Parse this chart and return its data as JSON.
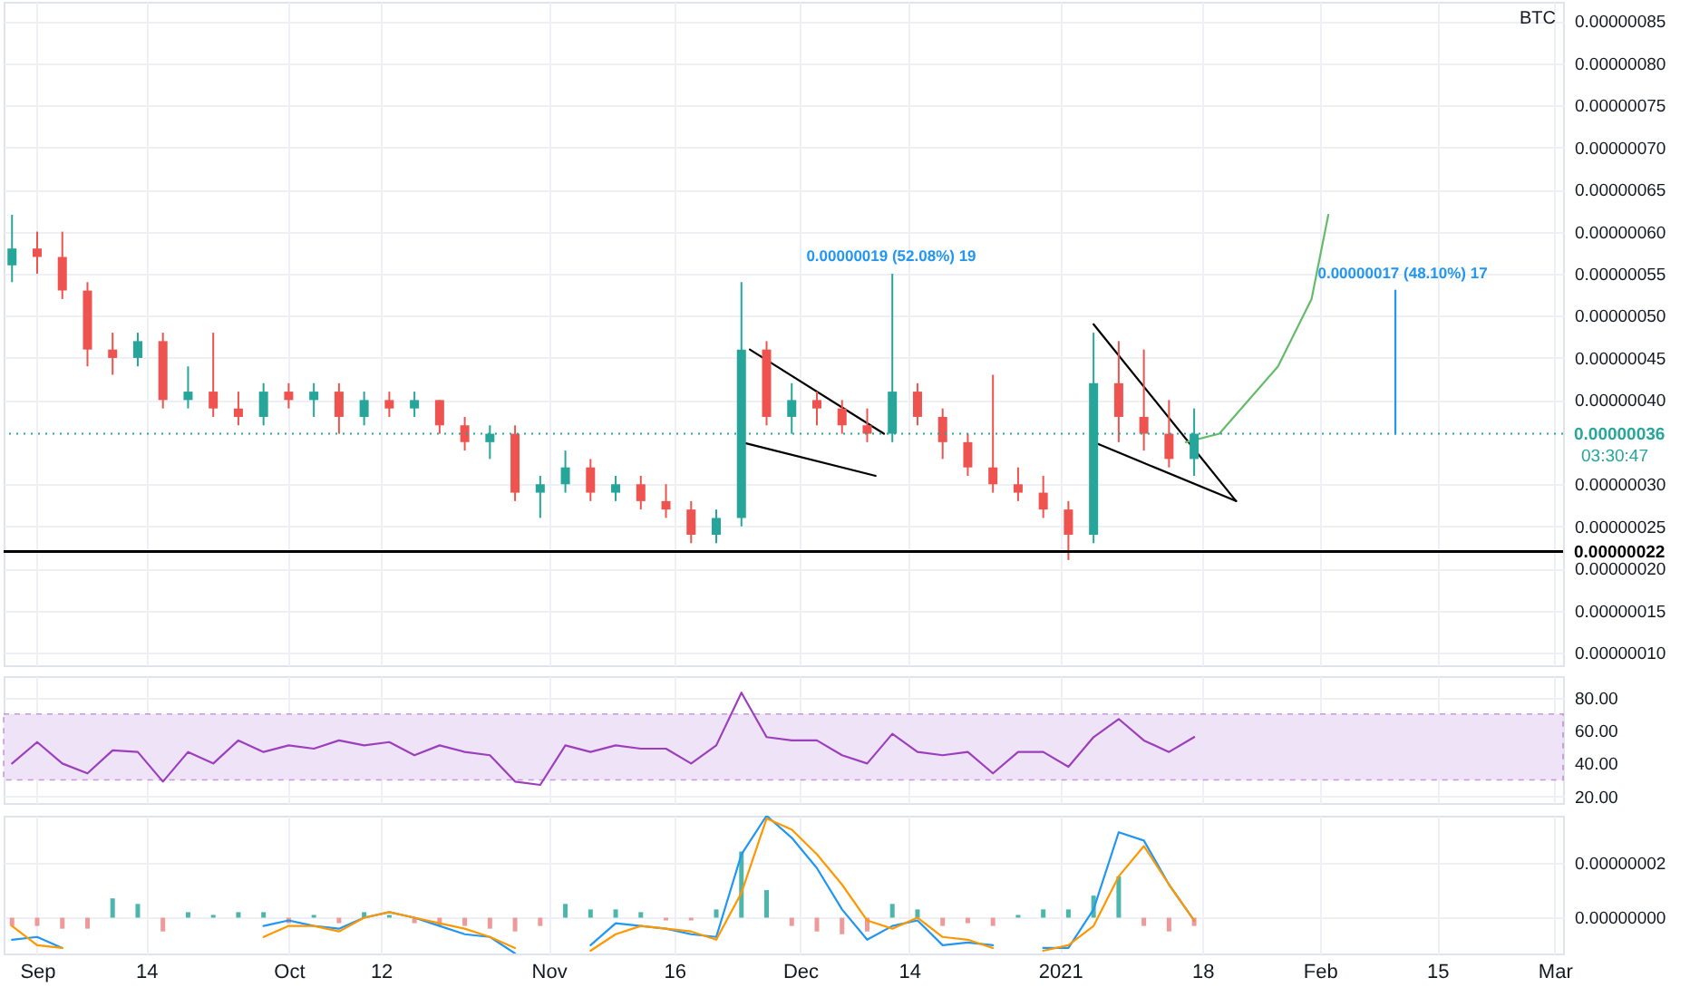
{
  "chart_data": [
    {
      "type": "candlestick",
      "x": [
        "2020-08-29",
        "2020-09-01",
        "2020-09-04",
        "2020-09-07",
        "2020-09-10",
        "2020-09-13",
        "2020-09-16",
        "2020-09-19",
        "2020-09-22",
        "2020-09-25",
        "2020-09-28",
        "2020-10-01",
        "2020-10-04",
        "2020-10-07",
        "2020-10-10",
        "2020-10-13",
        "2020-10-16",
        "2020-10-19",
        "2020-10-22",
        "2020-10-25",
        "2020-10-28",
        "2020-10-31",
        "2020-11-03",
        "2020-11-06",
        "2020-11-09",
        "2020-11-12",
        "2020-11-15",
        "2020-11-18",
        "2020-11-21",
        "2020-11-24",
        "2020-11-27",
        "2020-11-30",
        "2020-12-03",
        "2020-12-06",
        "2020-12-09",
        "2020-12-12",
        "2020-12-15",
        "2020-12-18",
        "2020-12-21",
        "2020-12-24",
        "2020-12-27",
        "2020-12-30",
        "2021-01-02",
        "2021-01-05",
        "2021-01-08",
        "2021-01-11",
        "2021-01-14",
        "2021-01-17"
      ],
      "ohlc": [
        [
          5.6e-07,
          6.2e-07,
          5.4e-07,
          5.8e-07
        ],
        [
          5.8e-07,
          6e-07,
          5.5e-07,
          5.7e-07
        ],
        [
          5.7e-07,
          6e-07,
          5.2e-07,
          5.3e-07
        ],
        [
          5.3e-07,
          5.4e-07,
          4.4e-07,
          4.6e-07
        ],
        [
          4.6e-07,
          4.8e-07,
          4.3e-07,
          4.5e-07
        ],
        [
          4.5e-07,
          4.8e-07,
          4.4e-07,
          4.7e-07
        ],
        [
          4.7e-07,
          4.8e-07,
          3.9e-07,
          4e-07
        ],
        [
          4e-07,
          4.4e-07,
          3.9e-07,
          4.1e-07
        ],
        [
          4.1e-07,
          4.8e-07,
          3.8e-07,
          3.9e-07
        ],
        [
          3.9e-07,
          4.1e-07,
          3.7e-07,
          3.8e-07
        ],
        [
          3.8e-07,
          4.2e-07,
          3.7e-07,
          4.1e-07
        ],
        [
          4.1e-07,
          4.2e-07,
          3.9e-07,
          4e-07
        ],
        [
          4e-07,
          4.2e-07,
          3.8e-07,
          4.1e-07
        ],
        [
          4.1e-07,
          4.2e-07,
          3.6e-07,
          3.8e-07
        ],
        [
          3.8e-07,
          4.1e-07,
          3.7e-07,
          4e-07
        ],
        [
          4e-07,
          4.1e-07,
          3.8e-07,
          3.9e-07
        ],
        [
          3.9e-07,
          4.1e-07,
          3.8e-07,
          4e-07
        ],
        [
          4e-07,
          4e-07,
          3.6e-07,
          3.7e-07
        ],
        [
          3.7e-07,
          3.8e-07,
          3.4e-07,
          3.5e-07
        ],
        [
          3.5e-07,
          3.7e-07,
          3.3e-07,
          3.6e-07
        ],
        [
          3.6e-07,
          3.7e-07,
          2.8e-07,
          2.9e-07
        ],
        [
          2.9e-07,
          3.1e-07,
          2.6e-07,
          3e-07
        ],
        [
          3e-07,
          3.4e-07,
          2.9e-07,
          3.2e-07
        ],
        [
          3.2e-07,
          3.3e-07,
          2.8e-07,
          2.9e-07
        ],
        [
          2.9e-07,
          3.1e-07,
          2.8e-07,
          3e-07
        ],
        [
          3e-07,
          3.1e-07,
          2.7e-07,
          2.8e-07
        ],
        [
          2.8e-07,
          3e-07,
          2.6e-07,
          2.7e-07
        ],
        [
          2.7e-07,
          2.8e-07,
          2.3e-07,
          2.4e-07
        ],
        [
          2.4e-07,
          2.7e-07,
          2.3e-07,
          2.6e-07
        ],
        [
          2.6e-07,
          5.4e-07,
          2.5e-07,
          4.6e-07
        ],
        [
          4.6e-07,
          4.7e-07,
          3.7e-07,
          3.8e-07
        ],
        [
          3.8e-07,
          4.2e-07,
          3.6e-07,
          4e-07
        ],
        [
          4e-07,
          4.1e-07,
          3.7e-07,
          3.9e-07
        ],
        [
          3.9e-07,
          4e-07,
          3.6e-07,
          3.7e-07
        ],
        [
          3.7e-07,
          3.9e-07,
          3.5e-07,
          3.6e-07
        ],
        [
          3.6e-07,
          5.5e-07,
          3.5e-07,
          4.1e-07
        ],
        [
          4.1e-07,
          4.2e-07,
          3.7e-07,
          3.8e-07
        ],
        [
          3.8e-07,
          3.9e-07,
          3.3e-07,
          3.5e-07
        ],
        [
          3.5e-07,
          3.6e-07,
          3.1e-07,
          3.2e-07
        ],
        [
          3.2e-07,
          4.3e-07,
          2.9e-07,
          3e-07
        ],
        [
          3e-07,
          3.2e-07,
          2.8e-07,
          2.9e-07
        ],
        [
          2.9e-07,
          3.1e-07,
          2.6e-07,
          2.7e-07
        ],
        [
          2.7e-07,
          2.8e-07,
          2.1e-07,
          2.4e-07
        ],
        [
          2.4e-07,
          4.8e-07,
          2.3e-07,
          4.2e-07
        ],
        [
          4.2e-07,
          4.7e-07,
          3.5e-07,
          3.8e-07
        ],
        [
          3.8e-07,
          4.6e-07,
          3.4e-07,
          3.6e-07
        ],
        [
          3.6e-07,
          4e-07,
          3.2e-07,
          3.3e-07
        ],
        [
          3.3e-07,
          3.9e-07,
          3.1e-07,
          3.6e-07
        ]
      ],
      "colors": [
        "#26a69a",
        "#ef5350",
        "#ef5350",
        "#ef5350",
        "#ef5350",
        "#26a69a",
        "#ef5350",
        "#26a69a",
        "#ef5350",
        "#ef5350",
        "#26a69a",
        "#ef5350",
        "#26a69a",
        "#ef5350",
        "#26a69a",
        "#ef5350",
        "#26a69a",
        "#ef5350",
        "#ef5350",
        "#26a69a",
        "#ef5350",
        "#26a69a",
        "#26a69a",
        "#ef5350",
        "#26a69a",
        "#ef5350",
        "#ef5350",
        "#ef5350",
        "#26a69a",
        "#26a69a",
        "#ef5350",
        "#26a69a",
        "#ef5350",
        "#ef5350",
        "#ef5350",
        "#26a69a",
        "#ef5350",
        "#ef5350",
        "#ef5350",
        "#ef5350",
        "#ef5350",
        "#ef5350",
        "#ef5350",
        "#26a69a",
        "#ef5350",
        "#ef5350",
        "#ef5350",
        "#26a69a"
      ],
      "series": [
        {
          "type": "line",
          "x": [
            "2020-11-25",
            "2020-12-11"
          ],
          "values": [
            4.6e-07,
            3.6e-07
          ],
          "color": "#000000"
        },
        {
          "type": "line",
          "x": [
            "2020-11-24",
            "2020-12-10"
          ],
          "values": [
            3.5e-07,
            3.1e-07
          ],
          "color": "#000000"
        },
        {
          "type": "line",
          "x": [
            "2021-01-05",
            "2021-01-22"
          ],
          "values": [
            4.9e-07,
            2.8e-07
          ],
          "color": "#000000"
        },
        {
          "type": "line",
          "x": [
            "2021-01-05",
            "2021-01-22"
          ],
          "values": [
            3.5e-07,
            2.8e-07
          ],
          "color": "#000000"
        },
        {
          "type": "line",
          "x": [
            "2021-01-16",
            "2021-01-20",
            "2021-01-27",
            "2021-01-31",
            "2021-02-02"
          ],
          "values": [
            3.5e-07,
            3.6e-07,
            4.4e-07,
            5.2e-07,
            6.2e-07
          ],
          "color": "#66bb6a"
        },
        {
          "type": "line",
          "x": [
            "2021-02-10",
            "2021-02-10"
          ],
          "values": [
            3.6e-07,
            5.3e-07
          ],
          "color": "#2196f3"
        }
      ],
      "xlim": [
        "2020-08-28",
        "2021-03-02"
      ],
      "xticks": [
        {
          "value": "2020-09-01",
          "label": null
        },
        {
          "value": "2020-09-14",
          "label": null
        },
        {
          "value": "2020-10-01",
          "label": null
        },
        {
          "value": "2020-10-12",
          "label": null
        },
        {
          "value": "2020-11-01",
          "label": null
        },
        {
          "value": "2020-11-16",
          "label": null
        },
        {
          "value": "2020-12-01",
          "label": null
        },
        {
          "value": "2020-12-14",
          "label": null
        },
        {
          "value": "2021-01-01",
          "label": null
        },
        {
          "value": "2021-01-18",
          "label": null
        },
        {
          "value": "2021-02-01",
          "label": null
        },
        {
          "value": "2021-02-15",
          "label": null
        },
        {
          "value": "2021-03-01",
          "label": null
        }
      ],
      "ylim": [
        8.5e-08,
        8.73e-07
      ],
      "yticks": [
        {
          "value": 1e-07,
          "label": "0.00000010"
        },
        {
          "value": 1.5e-07,
          "label": "0.00000015"
        },
        {
          "value": 2e-07,
          "label": "0.00000020"
        },
        {
          "value": 2.5e-07,
          "label": "0.00000025"
        },
        {
          "value": 3e-07,
          "label": "0.00000030"
        },
        {
          "value": 4e-07,
          "label": "0.00000040"
        },
        {
          "value": 4.5e-07,
          "label": "0.00000045"
        },
        {
          "value": 5e-07,
          "label": "0.00000050"
        },
        {
          "value": 5.5e-07,
          "label": "0.00000055"
        },
        {
          "value": 6e-07,
          "label": "0.00000060"
        },
        {
          "value": 6.5e-07,
          "label": "0.00000065"
        },
        {
          "value": 7e-07,
          "label": "0.00000070"
        },
        {
          "value": 7.5e-07,
          "label": "0.00000075"
        },
        {
          "value": 8e-07,
          "label": "0.00000080"
        },
        {
          "value": 8.5e-07,
          "label": "0.00000085"
        }
      ],
      "ref_lines": [
        {
          "axis": "y",
          "value": 3.6e-07,
          "label": "0.00000036",
          "color": "#26a69a",
          "line_style": "dotted"
        },
        {
          "axis": "y",
          "value": 2.2e-07,
          "label": "0.00000022",
          "color": "#000000",
          "line_style": "solid"
        }
      ],
      "annotations": [
        {
          "text": "0.00000019 (52.08%) 19",
          "x": "2020-12-11",
          "y": 5.5e-07
        },
        {
          "text": "0.00000017 (48.10%) 17",
          "x": "2021-02-10",
          "y": 5.3e-07
        },
        "BTC",
        "03:30:47"
      ],
      "grid": true,
      "tick_labels": "y"
    },
    {
      "type": "line",
      "x": [
        "2020-08-29",
        "2020-09-01",
        "2020-09-04",
        "2020-09-07",
        "2020-09-10",
        "2020-09-13",
        "2020-09-16",
        "2020-09-19",
        "2020-09-22",
        "2020-09-25",
        "2020-09-28",
        "2020-10-01",
        "2020-10-04",
        "2020-10-07",
        "2020-10-10",
        "2020-10-13",
        "2020-10-16",
        "2020-10-19",
        "2020-10-22",
        "2020-10-25",
        "2020-10-28",
        "2020-10-31",
        "2020-11-03",
        "2020-11-06",
        "2020-11-09",
        "2020-11-12",
        "2020-11-15",
        "2020-11-18",
        "2020-11-21",
        "2020-11-24",
        "2020-11-27",
        "2020-11-30",
        "2020-12-03",
        "2020-12-06",
        "2020-12-09",
        "2020-12-12",
        "2020-12-15",
        "2020-12-18",
        "2020-12-21",
        "2020-12-24",
        "2020-12-27",
        "2020-12-30",
        "2021-01-02",
        "2021-01-05",
        "2021-01-08",
        "2021-01-11",
        "2021-01-14",
        "2021-01-17"
      ],
      "series": [
        {
          "color": "#9c3fbd",
          "values": [
            40,
            53,
            40,
            34,
            48,
            47,
            29,
            47,
            40,
            54,
            47,
            51,
            49,
            54,
            51,
            53,
            45,
            51,
            47,
            45,
            29,
            27,
            51,
            47,
            51,
            49,
            49,
            40,
            51,
            83,
            56,
            54,
            54,
            45,
            40,
            58,
            47,
            45,
            47,
            34,
            47,
            47,
            38,
            56,
            67,
            54,
            47,
            56
          ]
        }
      ],
      "xlim": [
        "2020-08-28",
        "2021-03-02"
      ],
      "xticks": [
        {
          "value": "2020-09-01",
          "label": null
        },
        {
          "value": "2020-09-14",
          "label": null
        },
        {
          "value": "2020-10-01",
          "label": null
        },
        {
          "value": "2020-10-12",
          "label": null
        },
        {
          "value": "2020-11-01",
          "label": null
        },
        {
          "value": "2020-11-16",
          "label": null
        },
        {
          "value": "2020-12-01",
          "label": null
        },
        {
          "value": "2020-12-14",
          "label": null
        },
        {
          "value": "2021-01-01",
          "label": null
        },
        {
          "value": "2021-01-18",
          "label": null
        },
        {
          "value": "2021-02-01",
          "label": null
        },
        {
          "value": "2021-02-15",
          "label": null
        },
        {
          "value": "2021-03-01",
          "label": null
        }
      ],
      "ylim": [
        16,
        93
      ],
      "yticks": [
        {
          "value": 80,
          "label": "80.00"
        },
        {
          "value": 60,
          "label": "60.00"
        },
        {
          "value": 40,
          "label": "40.00"
        },
        {
          "value": 20,
          "label": "20.00"
        }
      ],
      "bands": [
        {
          "axis": "y",
          "from": 30,
          "to": 70,
          "color": "#efe3f8"
        }
      ],
      "grid": true,
      "tick_labels": "y"
    },
    {
      "type": "line",
      "x": [
        "2020-08-29",
        "2020-09-01",
        "2020-09-04",
        "2020-09-07",
        "2020-09-10",
        "2020-09-13",
        "2020-09-16",
        "2020-09-19",
        "2020-09-22",
        "2020-09-25",
        "2020-09-28",
        "2020-10-01",
        "2020-10-04",
        "2020-10-07",
        "2020-10-10",
        "2020-10-13",
        "2020-10-16",
        "2020-10-19",
        "2020-10-22",
        "2020-10-25",
        "2020-10-28",
        "2020-10-31",
        "2020-11-03",
        "2020-11-06",
        "2020-11-09",
        "2020-11-12",
        "2020-11-15",
        "2020-11-18",
        "2020-11-21",
        "2020-11-24",
        "2020-11-27",
        "2020-11-30",
        "2020-12-03",
        "2020-12-06",
        "2020-12-09",
        "2020-12-12",
        "2020-12-15",
        "2020-12-18",
        "2020-12-21",
        "2020-12-24",
        "2020-12-27",
        "2020-12-30",
        "2021-01-02",
        "2021-01-05",
        "2021-01-08",
        "2021-01-11",
        "2021-01-14",
        "2021-01-17"
      ],
      "series": [
        {
          "type": "bar",
          "values": [
            -3e-09,
            -3e-09,
            -4e-09,
            -4e-09,
            7e-09,
            5e-09,
            -5e-09,
            2e-09,
            1e-09,
            2e-09,
            2e-09,
            -2e-09,
            1e-09,
            -2e-09,
            2e-09,
            1e-09,
            -2e-09,
            -3e-09,
            -3e-09,
            -4e-09,
            -5e-09,
            -3e-09,
            5e-09,
            3e-09,
            3e-09,
            2e-09,
            -1e-09,
            -1e-09,
            3e-09,
            2.4e-08,
            1e-08,
            -3e-09,
            -5e-09,
            -6e-09,
            -5e-09,
            5e-09,
            3e-09,
            -3e-09,
            -2e-09,
            -3e-09,
            1e-09,
            3e-09,
            3e-09,
            8e-09,
            1.5e-08,
            -3e-09,
            -5e-09,
            -3e-09
          ],
          "colors": [
            "#ef9a9a",
            "#ef9a9a",
            "#ef9a9a",
            "#ef9a9a",
            "#4db6ac",
            "#4db6ac",
            "#ef9a9a",
            "#4db6ac",
            "#4db6ac",
            "#4db6ac",
            "#4db6ac",
            "#ef9a9a",
            "#4db6ac",
            "#ef9a9a",
            "#4db6ac",
            "#4db6ac",
            "#ef9a9a",
            "#ef9a9a",
            "#ef9a9a",
            "#ef9a9a",
            "#ef9a9a",
            "#ef9a9a",
            "#4db6ac",
            "#4db6ac",
            "#4db6ac",
            "#4db6ac",
            "#ef9a9a",
            "#ef9a9a",
            "#4db6ac",
            "#4db6ac",
            "#4db6ac",
            "#ef9a9a",
            "#ef9a9a",
            "#ef9a9a",
            "#ef9a9a",
            "#4db6ac",
            "#4db6ac",
            "#ef9a9a",
            "#ef9a9a",
            "#ef9a9a",
            "#4db6ac",
            "#4db6ac",
            "#4db6ac",
            "#4db6ac",
            "#4db6ac",
            "#ef9a9a",
            "#ef9a9a",
            "#ef9a9a"
          ]
        },
        {
          "type": "line",
          "color": "#2196f3",
          "values": [
            -8e-09,
            -7e-09,
            -1.1e-08,
            null,
            null,
            null,
            null,
            null,
            null,
            null,
            -3e-09,
            -1e-09,
            -3e-09,
            -4e-09,
            0,
            2e-09,
            0,
            -3e-09,
            -6e-09,
            -7e-09,
            -1.3e-08,
            null,
            null,
            -1e-08,
            -2e-09,
            -3e-09,
            -4e-09,
            -6e-09,
            -7e-09,
            2.3e-08,
            3.7e-08,
            2.9e-08,
            1.8e-08,
            3e-09,
            -8e-09,
            -3e-09,
            -1e-09,
            -1e-08,
            -9e-09,
            -1e-08,
            null,
            -1.1e-08,
            -1.1e-08,
            3e-09,
            3.1e-08,
            2.8e-08,
            1.2e-08,
            -1e-09
          ]
        },
        {
          "type": "line",
          "color": "#ff9800",
          "values": [
            -3e-09,
            -1e-08,
            -1.1e-08,
            null,
            null,
            null,
            null,
            null,
            null,
            null,
            -7e-09,
            -3e-09,
            -3e-09,
            -5e-09,
            0,
            2e-09,
            0,
            -2e-09,
            -4e-09,
            -7e-09,
            -1.1e-08,
            null,
            null,
            -1.2e-08,
            -6e-09,
            -3e-09,
            -4e-09,
            -5e-09,
            -8e-09,
            9e-09,
            3.6e-08,
            3.2e-08,
            2.3e-08,
            1.2e-08,
            -1e-09,
            -4e-09,
            0,
            -7e-09,
            -8e-09,
            -1.1e-08,
            null,
            -1.2e-08,
            -1e-08,
            -3e-09,
            1.5e-08,
            2.6e-08,
            1.2e-08,
            -1e-09
          ]
        }
      ],
      "xlim": [
        "2020-08-28",
        "2021-03-02"
      ],
      "xticks": [
        {
          "value": "2020-09-01",
          "label": "Sep"
        },
        {
          "value": "2020-09-14",
          "label": "14"
        },
        {
          "value": "2020-10-01",
          "label": "Oct"
        },
        {
          "value": "2020-10-12",
          "label": "12"
        },
        {
          "value": "2020-11-01",
          "label": "Nov"
        },
        {
          "value": "2020-11-16",
          "label": "16"
        },
        {
          "value": "2020-12-01",
          "label": "Dec"
        },
        {
          "value": "2020-12-14",
          "label": "14"
        },
        {
          "value": "2021-01-01",
          "label": "2021"
        },
        {
          "value": "2021-01-18",
          "label": "18"
        },
        {
          "value": "2021-02-01",
          "label": "Feb"
        },
        {
          "value": "2021-02-15",
          "label": "15"
        },
        {
          "value": "2021-03-01",
          "label": "Mar"
        }
      ],
      "ylim": [
        -1.3e-08,
        3.7e-08
      ],
      "yticks": [
        {
          "value": 2e-08,
          "label": "0.00000002"
        },
        {
          "value": 0,
          "label": "0.00000000"
        }
      ],
      "grid": true
    }
  ]
}
